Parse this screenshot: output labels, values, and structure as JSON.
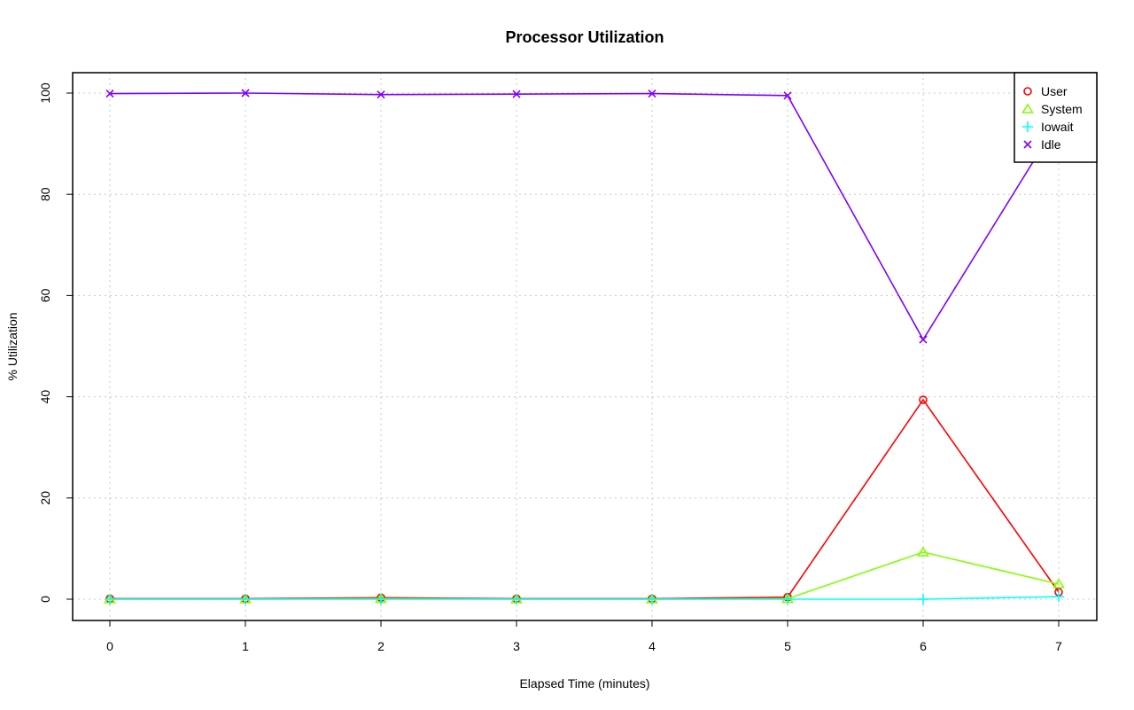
{
  "chart_data": {
    "type": "line",
    "title": "Processor Utilization",
    "xlabel": "Elapsed Time (minutes)",
    "ylabel": "% Utilization",
    "x": [
      0,
      1,
      2,
      3,
      4,
      5,
      6,
      7
    ],
    "xlim": [
      -0.28,
      7.28
    ],
    "ylim": [
      -4,
      104
    ],
    "xticks": [
      "0",
      "1",
      "2",
      "3",
      "4",
      "5",
      "6",
      "7"
    ],
    "yticks": [
      "0",
      "20",
      "40",
      "60",
      "80",
      "100"
    ],
    "grid": true,
    "legend_position": "top-right",
    "series": [
      {
        "name": "User",
        "color": "#ff0000",
        "marker": "circle",
        "values": [
          0.1,
          0.1,
          0.3,
          0.1,
          0.1,
          0.4,
          39.4,
          1.4
        ]
      },
      {
        "name": "System",
        "color": "#80ff00",
        "marker": "triangle",
        "values": [
          0.0,
          0.0,
          0.1,
          0.0,
          0.0,
          0.1,
          9.3,
          3.0
        ]
      },
      {
        "name": "Iowait",
        "color": "#00ffff",
        "marker": "plus",
        "values": [
          0.0,
          0.0,
          0.0,
          0.0,
          0.0,
          0.0,
          0.0,
          0.5
        ]
      },
      {
        "name": "Idle",
        "color": "#8000ff",
        "marker": "cross",
        "values": [
          99.9,
          100.0,
          99.7,
          99.8,
          99.9,
          99.5,
          51.3,
          94.6
        ]
      }
    ]
  }
}
